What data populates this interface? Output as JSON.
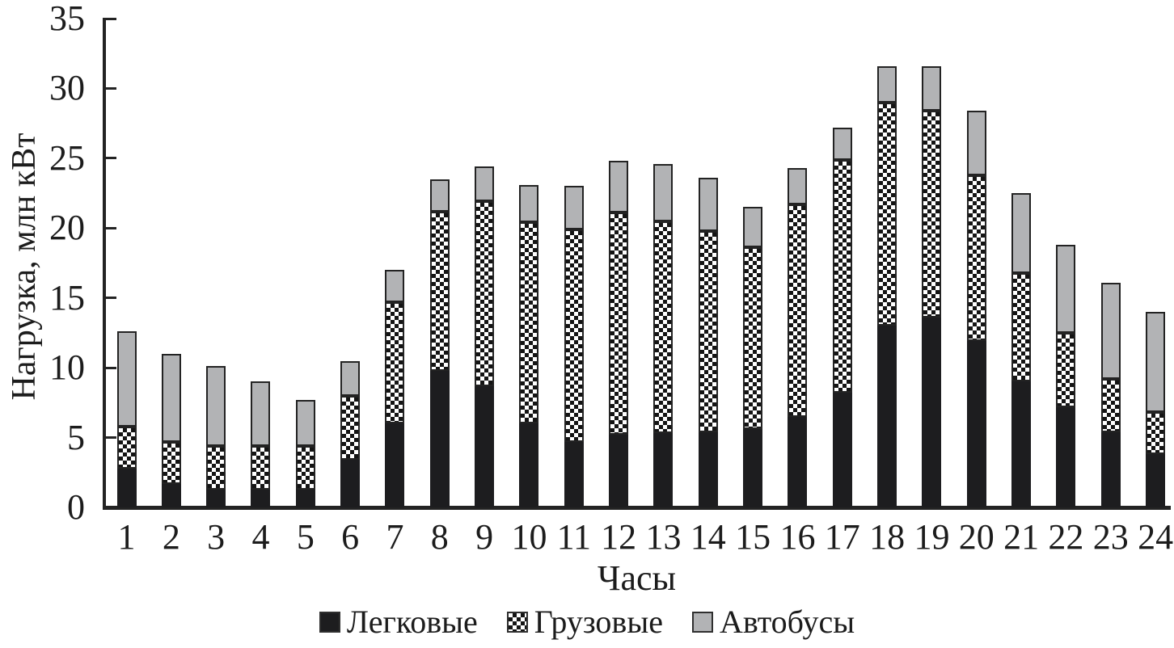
{
  "chart_data": {
    "type": "bar",
    "stacked": true,
    "orientation": "vertical",
    "title": "",
    "xlabel": "Часы",
    "ylabel": "Нагрузка, млн кВт",
    "categories": [
      1,
      2,
      3,
      4,
      5,
      6,
      7,
      8,
      9,
      10,
      11,
      12,
      13,
      14,
      15,
      16,
      17,
      18,
      19,
      20,
      21,
      22,
      23,
      24
    ],
    "series": [
      {
        "name": "Легковые",
        "pattern": "solid-black",
        "values": [
          2.8,
          1.7,
          1.3,
          1.3,
          1.3,
          3.4,
          6.0,
          9.8,
          8.7,
          6.0,
          4.7,
          5.2,
          5.3,
          5.4,
          5.6,
          6.5,
          8.2,
          13.0,
          13.6,
          11.9,
          9.0,
          7.2,
          5.4,
          3.8
        ]
      },
      {
        "name": "Грузовые",
        "pattern": "checker",
        "values": [
          3.0,
          3.0,
          3.1,
          3.1,
          3.1,
          4.6,
          8.7,
          11.4,
          13.2,
          14.4,
          15.2,
          15.9,
          15.2,
          14.4,
          13.0,
          15.2,
          16.7,
          16.0,
          14.8,
          11.9,
          7.8,
          5.3,
          3.8,
          3.0
        ]
      },
      {
        "name": "Автобусы",
        "pattern": "solid-gray",
        "values": [
          6.8,
          6.3,
          5.7,
          4.6,
          3.3,
          2.5,
          2.3,
          2.3,
          2.5,
          2.7,
          3.1,
          3.7,
          4.1,
          3.8,
          2.9,
          2.6,
          2.3,
          2.6,
          3.2,
          4.6,
          5.7,
          6.3,
          6.9,
          7.2
        ]
      }
    ],
    "ylim": [
      0,
      35
    ],
    "yticks": [
      0,
      5,
      10,
      15,
      20,
      25,
      30,
      35
    ],
    "grid": false,
    "legend_position": "bottom",
    "colors": {
      "black": "#1d1d1f",
      "gray": "#b2b3b5",
      "checker_dark": "#141414",
      "checker_light": "#ffffff",
      "axis": "#232323",
      "background": "#ffffff"
    }
  }
}
